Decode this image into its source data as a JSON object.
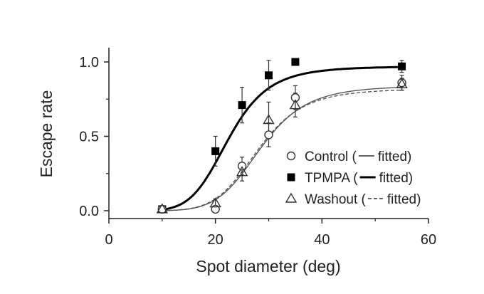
{
  "chart_data": {
    "type": "scatter",
    "title": "",
    "xlabel": "Spot diameter (deg)",
    "ylabel": "Escape rate",
    "xlim": [
      0,
      60
    ],
    "ylim": [
      0,
      1.0
    ],
    "x_ticks": [
      0,
      20,
      40,
      60
    ],
    "x_tick_labels": [
      "0",
      "20",
      "40",
      "60"
    ],
    "y_ticks": [
      0,
      0.5,
      1.0
    ],
    "y_tick_labels": [
      "0.0",
      "0.5",
      "1.0"
    ],
    "grid": false,
    "legend_position": "right",
    "series": [
      {
        "name": "Control",
        "fit_label": "fitted",
        "marker": "open-circle",
        "fit_style": "thin-solid",
        "x": [
          10,
          20,
          25,
          30,
          35,
          55
        ],
        "y": [
          0.01,
          0.01,
          0.3,
          0.51,
          0.76,
          0.86
        ],
        "err": [
          0.01,
          0.02,
          0.06,
          0.08,
          0.08,
          0.05
        ],
        "fit": {
          "bottom": 0.0,
          "top": 0.84,
          "x50": 28.5,
          "slope": 3.3
        }
      },
      {
        "name": "TPMPA",
        "fit_label": "fitted",
        "marker": "filled-square",
        "fit_style": "thick-solid",
        "x": [
          10,
          20,
          25,
          30,
          35,
          55
        ],
        "y": [
          0.01,
          0.4,
          0.71,
          0.91,
          1.0,
          0.97
        ],
        "err": [
          0.01,
          0.1,
          0.12,
          0.1,
          0.0,
          0.04
        ],
        "fit": {
          "bottom": 0.0,
          "top": 0.97,
          "x50": 22.5,
          "slope": 3.0
        }
      },
      {
        "name": "Washout",
        "fit_label": "fitted",
        "marker": "open-triangle",
        "fit_style": "dashed",
        "x": [
          10,
          20,
          25,
          30,
          35,
          55
        ],
        "y": [
          0.01,
          0.05,
          0.26,
          0.61,
          0.71,
          0.85
        ],
        "err": [
          0.01,
          0.03,
          0.06,
          0.12,
          0.08,
          0.04
        ],
        "fit": {
          "bottom": 0.0,
          "top": 0.82,
          "x50": 28.0,
          "slope": 3.3
        }
      }
    ]
  }
}
